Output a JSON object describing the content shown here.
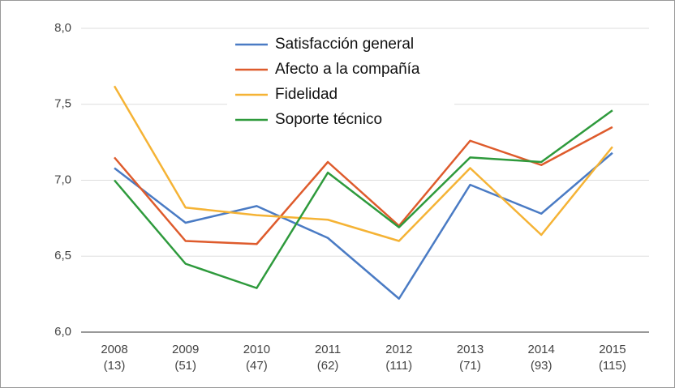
{
  "chart_data": {
    "type": "line",
    "categories": [
      [
        "2008",
        "(13)"
      ],
      [
        "2009",
        "(51)"
      ],
      [
        "2010",
        "(47)"
      ],
      [
        "2011",
        "(62)"
      ],
      [
        "2012",
        "(111)"
      ],
      [
        "2013",
        "(71)"
      ],
      [
        "2014",
        "(93)"
      ],
      [
        "2015",
        "(115)"
      ]
    ],
    "series": [
      {
        "name": "Satisfacción general",
        "color": "#4a7bc4",
        "values": [
          7.08,
          6.72,
          6.83,
          6.62,
          6.22,
          6.97,
          6.78,
          7.18
        ]
      },
      {
        "name": "Afecto a la compañía",
        "color": "#de5b2c",
        "values": [
          7.15,
          6.6,
          6.58,
          7.12,
          6.7,
          7.26,
          7.1,
          7.35
        ]
      },
      {
        "name": "Fidelidad",
        "color": "#f5b335",
        "values": [
          7.62,
          6.82,
          6.77,
          6.74,
          6.6,
          7.08,
          6.64,
          7.22
        ]
      },
      {
        "name": "Soporte técnico",
        "color": "#2e9a3c",
        "values": [
          7.0,
          6.45,
          6.29,
          7.05,
          6.69,
          7.15,
          7.12,
          7.46
        ]
      }
    ],
    "ylim": [
      6,
      8
    ],
    "yticks": [
      {
        "value": 6,
        "label": "6,0"
      },
      {
        "value": 6.5,
        "label": "6,5"
      },
      {
        "value": 7,
        "label": "7,0"
      },
      {
        "value": 7.5,
        "label": "7,5"
      },
      {
        "value": 8,
        "label": "8,0"
      }
    ],
    "grid": true,
    "legend": "top"
  }
}
